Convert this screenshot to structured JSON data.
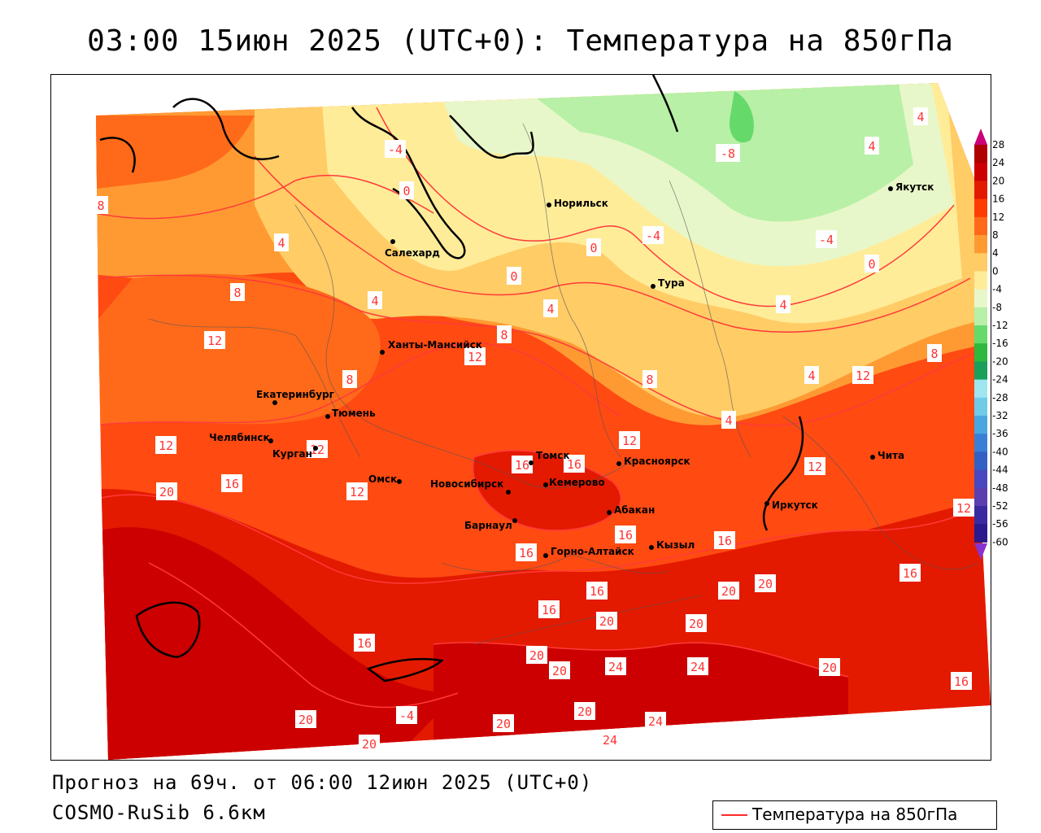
{
  "title": "03:00 15июн 2025 (UTC+0): Температура на 850гПа",
  "forecast": "Прогноз на 69ч. от 06:00 12июн 2025 (UTC+0)",
  "model": "COSMO-RuSib 6.6км",
  "legend": {
    "label": "Температура на 850гПа",
    "line_color": "#ff2a2a"
  },
  "scale": {
    "ticks": [
      "28",
      "24",
      "20",
      "16",
      "12",
      "8",
      "4",
      "0",
      "-4",
      "-8",
      "-12",
      "-16",
      "-20",
      "-24",
      "-28",
      "-32",
      "-36",
      "-40",
      "-44",
      "-48",
      "-52",
      "-56",
      "-60"
    ],
    "colors": [
      "#b00000",
      "#cc0000",
      "#e31a00",
      "#ff3c00",
      "#ff6a1a",
      "#ff9a33",
      "#ffcc66",
      "#ffec99",
      "#e8f7c9",
      "#b7f0a6",
      "#66d96b",
      "#2eb83d",
      "#1aa05a",
      "#9fe6f0",
      "#6fcbe8",
      "#4aa6e0",
      "#3a7fd6",
      "#3260c4",
      "#4848c0",
      "#5a3fb0",
      "#3a2aa0",
      "#2a1a8c"
    ]
  },
  "cities": [
    {
      "name": "Норильск"
    },
    {
      "name": "Якутск"
    },
    {
      "name": "Салехард"
    },
    {
      "name": "Тура"
    },
    {
      "name": "Ханты-Мансийск"
    },
    {
      "name": "Екатеринбург"
    },
    {
      "name": "Тюмень"
    },
    {
      "name": "Челябинск"
    },
    {
      "name": "Курган"
    },
    {
      "name": "Омск"
    },
    {
      "name": "Новосибирск"
    },
    {
      "name": "Томск"
    },
    {
      "name": "Кемерово"
    },
    {
      "name": "Красноярск"
    },
    {
      "name": "Барнаул"
    },
    {
      "name": "Абакан"
    },
    {
      "name": "Горно-Алтайск"
    },
    {
      "name": "Кызыл"
    },
    {
      "name": "Иркутск"
    },
    {
      "name": "Чита"
    }
  ],
  "isotherm_labels": [
    "8",
    "4",
    "4",
    "-4",
    "0",
    "-4",
    "4",
    "-8",
    "0",
    "4",
    "0",
    "-4",
    "4",
    "-4",
    "8",
    "0",
    "4",
    "12",
    "8",
    "12",
    "4",
    "8",
    "8",
    "4",
    "12",
    "8",
    "12",
    "12",
    "12",
    "12",
    "16",
    "16",
    "12",
    "20",
    "16",
    "16",
    "16",
    "16",
    "16",
    "20",
    "12",
    "16",
    "20",
    "20",
    "20",
    "16",
    "16",
    "20",
    "20",
    "20",
    "24",
    "24",
    "24",
    "20",
    "16",
    "20",
    "20",
    "24",
    "20"
  ]
}
